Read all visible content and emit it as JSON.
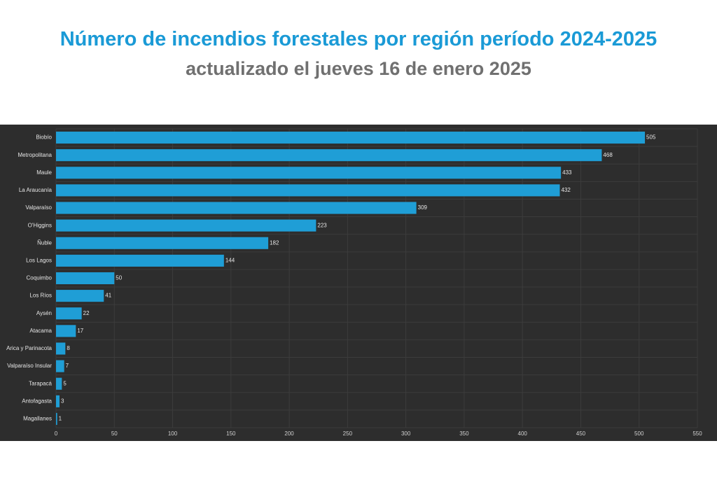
{
  "header": {
    "title": "Número de incendios forestales por región período 2024-2025",
    "subtitle": "actualizado el jueves 16 de enero 2025"
  },
  "colors": {
    "title": "#1a9ad6",
    "subtitle": "#707070",
    "chart_background": "#2d2d2d",
    "bar": "#1f9ed6",
    "grid": "#3c3c3c",
    "label_text": "#e6e6e6"
  },
  "chart_data": {
    "type": "bar",
    "orientation": "horizontal",
    "title": "Número de incendios forestales por región período 2024-2025",
    "subtitle": "actualizado el jueves 16 de enero 2025",
    "xlabel": "",
    "ylabel": "",
    "xlim": [
      0,
      550
    ],
    "xticks": [
      0,
      50,
      100,
      150,
      200,
      250,
      300,
      350,
      400,
      450,
      500,
      550
    ],
    "grid": true,
    "categories": [
      "Biobío",
      "Metropolitana",
      "Maule",
      "La Araucanía",
      "Valparaíso",
      "O'Higgins",
      "Ñuble",
      "Los Lagos",
      "Coquimbo",
      "Los Ríos",
      "Aysén",
      "Atacama",
      "Arica y Parinacota",
      "Valparaíso Insular",
      "Tarapacá",
      "Antofagasta",
      "Magallanes"
    ],
    "values": [
      505,
      468,
      433,
      432,
      309,
      223,
      182,
      144,
      50,
      41,
      22,
      17,
      8,
      7,
      5,
      3,
      1
    ]
  }
}
